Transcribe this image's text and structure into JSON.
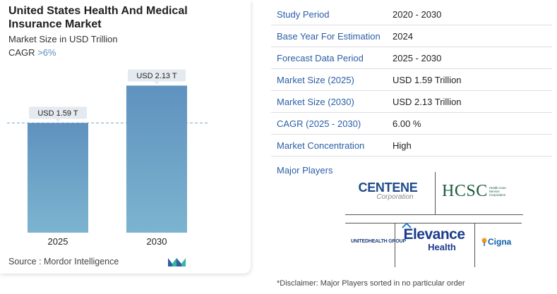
{
  "header": {
    "title": "United States Health And Medical Insurance Market",
    "subtitle": "Market Size in USD Trillion",
    "cagr_label": "CAGR",
    "cagr_value": ">6%"
  },
  "chart_data": {
    "type": "bar",
    "categories": [
      "2025",
      "2030"
    ],
    "values": [
      1.59,
      2.13
    ],
    "data_labels": [
      "USD 1.59 T",
      "USD 2.13 T"
    ],
    "ylabel": "Market Size in USD Trillion",
    "ylim": [
      0,
      2.4
    ],
    "reference_line": 1.59,
    "colors": {
      "bar_top": "#5f92bf",
      "bar_bottom": "#7cb4cf",
      "label_bg": "#e4eaef",
      "reference": "#7aa7c7"
    }
  },
  "footer": {
    "source": "Source :  Mordor Intelligence"
  },
  "table": {
    "rows": [
      {
        "key": "Study Period",
        "value": "2020 - 2030"
      },
      {
        "key": "Base Year For Estimation",
        "value": "2024"
      },
      {
        "key": "Forecast Data Period",
        "value": "2025 - 2030"
      },
      {
        "key": "Market Size (2025)",
        "value": "USD 1.59 Trillion"
      },
      {
        "key": "Market Size (2030)",
        "value": "USD 2.13 Trillion"
      },
      {
        "key": "CAGR (2025 - 2030)",
        "value": "6.00 %"
      },
      {
        "key": "Market Concentration",
        "value": "High"
      }
    ]
  },
  "players": {
    "label": "Major Players",
    "centene": {
      "main": "CENTENE",
      "sub": "Corporation"
    },
    "hcsc": {
      "main": "HCSC",
      "sub": "Health Care Service Corporation"
    },
    "uhg": {
      "main": "UNITEDHEALTH GROUP"
    },
    "elevance": {
      "main": "Elevance",
      "sub": "Health"
    },
    "cigna": {
      "main": "Cigna"
    }
  },
  "disclaimer": "*Disclaimer: Major Players sorted in no particular order",
  "colors": {
    "accent": "#2a5ea8",
    "title": "#1f1f1f",
    "divider": "#dedede"
  }
}
